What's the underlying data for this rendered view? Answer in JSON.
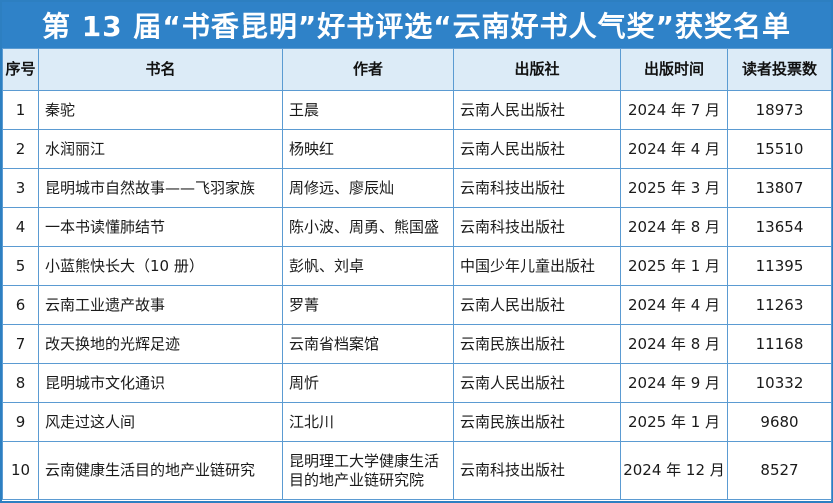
{
  "title": "第 13 届“书香昆明”好书评选“云南好书人气奖”获奖名单",
  "headers": {
    "no": "序号",
    "book": "书名",
    "author": "作者",
    "publisher": "出版社",
    "date": "出版时间",
    "votes": "读者投票数"
  },
  "rows": [
    {
      "no": "1",
      "book": "秦驼",
      "author": "王晨",
      "publisher": "云南人民出版社",
      "date": "2024 年 7 月",
      "votes": "18973"
    },
    {
      "no": "2",
      "book": "水润丽江",
      "author": "杨映红",
      "publisher": "云南人民出版社",
      "date": "2024 年 4 月",
      "votes": "15510"
    },
    {
      "no": "3",
      "book": "昆明城市自然故事——飞羽家族",
      "author": "周修远、廖辰灿",
      "publisher": "云南科技出版社",
      "date": "2025 年 3 月",
      "votes": "13807"
    },
    {
      "no": "4",
      "book": "一本书读懂肺结节",
      "author": "陈小波、周勇、熊国盛",
      "publisher": "云南科技出版社",
      "date": "2024 年 8 月",
      "votes": "13654"
    },
    {
      "no": "5",
      "book": "小蓝熊快长大（10 册）",
      "author": "彭帆、刘卓",
      "publisher": "中国少年儿童出版社",
      "date": "2025 年 1 月",
      "votes": "11395"
    },
    {
      "no": "6",
      "book": "云南工业遗产故事",
      "author": "罗菁",
      "publisher": "云南人民出版社",
      "date": "2024 年 4 月",
      "votes": "11263"
    },
    {
      "no": "7",
      "book": "改天换地的光辉足迹",
      "author": "云南省档案馆",
      "publisher": "云南民族出版社",
      "date": "2024 年 8 月",
      "votes": "11168"
    },
    {
      "no": "8",
      "book": "昆明城市文化通识",
      "author": "周忻",
      "publisher": "云南人民出版社",
      "date": "2024 年 9 月",
      "votes": "10332"
    },
    {
      "no": "9",
      "book": "风走过这人间",
      "author": "江北川",
      "publisher": "云南民族出版社",
      "date": "2025 年 1 月",
      "votes": "9680"
    },
    {
      "no": "10",
      "book": "云南健康生活目的地产业链研究",
      "author": "昆明理工大学健康生活目的地产业链研究院",
      "publisher": "云南科技出版社",
      "date": "2024 年 12 月",
      "votes": "8527"
    }
  ],
  "colors": {
    "title_bg": "#2f82c8",
    "border": "#5b9bd2",
    "header_bg": "#dcebf7"
  }
}
